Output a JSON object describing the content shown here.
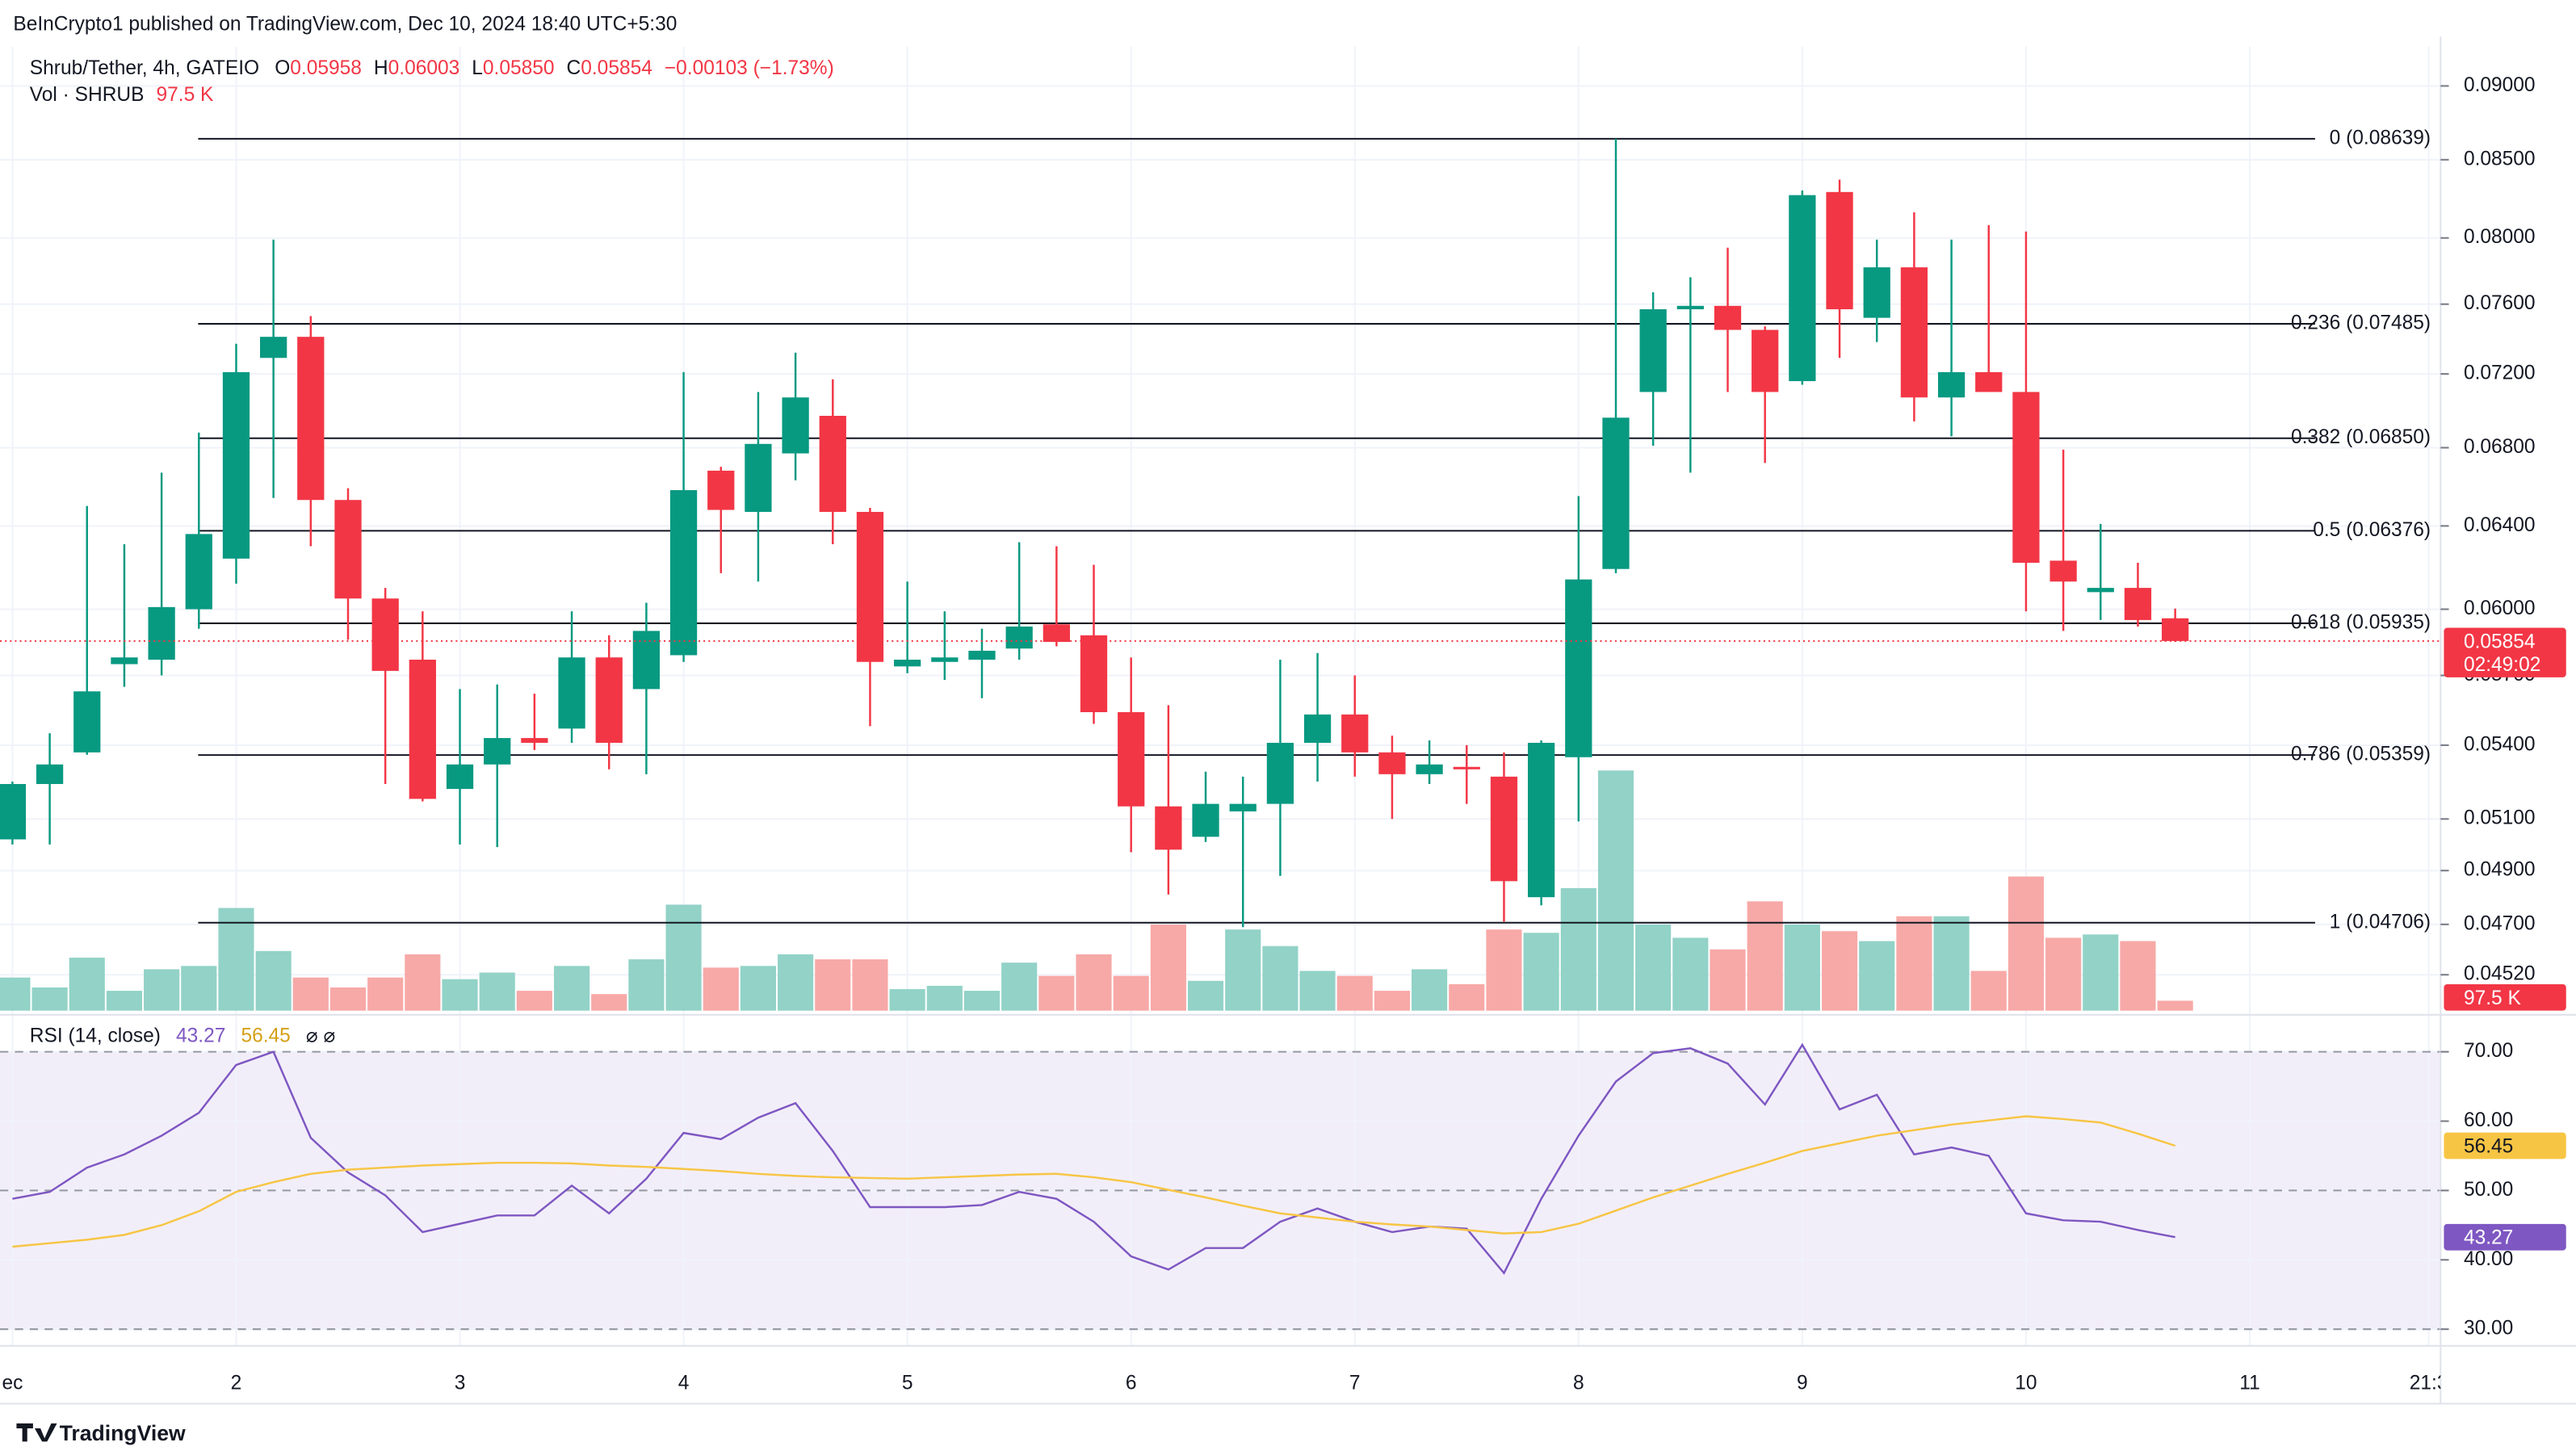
{
  "header": {
    "published": "BeInCrypto1 published on TradingView.com, Dec 10, 2024 18:40 UTC+5:30"
  },
  "footer": {
    "brand": "TradingView"
  },
  "chart_data": [
    {
      "type": "candlestick",
      "title": "Shrub/Tether, 4h, GATEIO",
      "legend": {
        "open": {
          "letter": "O",
          "text": "0.05958"
        },
        "high": {
          "letter": "H",
          "text": "0.06003"
        },
        "low": {
          "letter": "L",
          "text": "0.05850"
        },
        "close": {
          "letter": "C",
          "text": "0.05854"
        },
        "change": "−0.00103 (−1.73%)"
      },
      "countdown": "02:49:02",
      "up_color": "#089981",
      "down_color": "#f23645",
      "log_scale": true,
      "grid": true,
      "xlim": [
        0.9444,
        11.853
      ],
      "xticks": [
        {
          "value": 1,
          "label": "ec"
        },
        2,
        3,
        4,
        5,
        6,
        7,
        8,
        9,
        10,
        11,
        {
          "value": 11.8,
          "label": "21:3"
        }
      ],
      "ylim": [
        0.04396,
        0.0928
      ],
      "yticks": [
        {
          "value": 0.09,
          "label": "0.09000"
        },
        {
          "value": 0.085,
          "label": "0.08500"
        },
        {
          "value": 0.08,
          "label": "0.08000"
        },
        {
          "value": 0.076,
          "label": "0.07600"
        },
        {
          "value": 0.072,
          "label": "0.07200"
        },
        {
          "value": 0.068,
          "label": "0.06800"
        },
        {
          "value": 0.064,
          "label": "0.06400"
        },
        {
          "value": 0.06,
          "label": "0.06000"
        },
        {
          "value": 0.057,
          "label": "0.05700"
        },
        {
          "value": 0.054,
          "label": "0.05400"
        },
        {
          "value": 0.051,
          "label": "0.05100"
        },
        {
          "value": 0.049,
          "label": "0.04900"
        },
        {
          "value": 0.047,
          "label": "0.04700"
        },
        {
          "value": 0.0452,
          "label": "0.04520"
        }
      ],
      "fib_levels": [
        {
          "value": 0.08639,
          "label": "0 (0.08639)"
        },
        {
          "value": 0.07485,
          "label": "0.236 (0.07485)"
        },
        {
          "value": 0.0685,
          "label": "0.382 (0.06850)"
        },
        {
          "value": 0.06376,
          "label": "0.5 (0.06376)"
        },
        {
          "value": 0.05935,
          "label": "0.618 (0.05935)"
        },
        {
          "value": 0.05359,
          "label": "0.786 (0.05359)"
        },
        {
          "value": 0.04706,
          "label": "1 (0.04706)"
        }
      ],
      "x": [
        1,
        1.1667,
        1.3333,
        1.5,
        1.6667,
        1.8333,
        2,
        2.1667,
        2.3333,
        2.5,
        2.6667,
        2.8333,
        3,
        3.1667,
        3.3333,
        3.5,
        3.6667,
        3.8333,
        4,
        4.1667,
        4.3333,
        4.5,
        4.6667,
        4.8333,
        5,
        5.1667,
        5.3333,
        5.5,
        5.6667,
        5.8333,
        6,
        6.1667,
        6.3333,
        6.5,
        6.6667,
        6.8333,
        7,
        7.1667,
        7.3333,
        7.5,
        7.6667,
        7.8333,
        8,
        8.1667,
        8.3333,
        8.5,
        8.6667,
        8.8333,
        9,
        9.1667,
        9.3333,
        9.5,
        9.6667,
        9.8333,
        10,
        10.1667,
        10.3333,
        10.5,
        10.6667
      ],
      "open": [
        0.0502,
        0.0524,
        0.0537,
        0.0575,
        0.0577,
        0.06,
        0.0624,
        0.0729,
        0.0741,
        0.0653,
        0.0605,
        0.0577,
        0.0522,
        0.0532,
        0.0543,
        0.0547,
        0.0578,
        0.0564,
        0.0579,
        0.0668,
        0.0647,
        0.0677,
        0.0697,
        0.0647,
        0.0574,
        0.0576,
        0.0577,
        0.0582,
        0.0593,
        0.0588,
        0.0554,
        0.0515,
        0.0503,
        0.0513,
        0.0516,
        0.0541,
        0.0553,
        0.0537,
        0.0528,
        0.0531,
        0.0527,
        0.048,
        0.0535,
        0.0619,
        0.071,
        0.0757,
        0.0759,
        0.0745,
        0.0716,
        0.0829,
        0.0752,
        0.0782,
        0.0707,
        0.0721,
        0.071,
        0.0623,
        0.0608,
        0.061,
        0.05958
      ],
      "high": [
        0.0525,
        0.0545,
        0.065,
        0.0631,
        0.0667,
        0.0688,
        0.0737,
        0.0799,
        0.0753,
        0.0659,
        0.061,
        0.0599,
        0.0564,
        0.0566,
        0.0562,
        0.0599,
        0.0588,
        0.0603,
        0.0721,
        0.067,
        0.071,
        0.0732,
        0.0717,
        0.0649,
        0.0613,
        0.0599,
        0.0591,
        0.0632,
        0.063,
        0.0621,
        0.0578,
        0.0557,
        0.0529,
        0.0527,
        0.0577,
        0.058,
        0.057,
        0.0544,
        0.0542,
        0.054,
        0.0537,
        0.0542,
        0.0655,
        0.0864,
        0.0767,
        0.0776,
        0.0794,
        0.0747,
        0.083,
        0.0837,
        0.0799,
        0.0816,
        0.0799,
        0.0808,
        0.0804,
        0.0679,
        0.0641,
        0.0622,
        0.06003
      ],
      "low": [
        0.05,
        0.05,
        0.0536,
        0.0565,
        0.057,
        0.0591,
        0.0612,
        0.0654,
        0.063,
        0.0586,
        0.0524,
        0.0517,
        0.05,
        0.0499,
        0.0538,
        0.0541,
        0.053,
        0.0528,
        0.0576,
        0.0617,
        0.0613,
        0.0663,
        0.0631,
        0.0548,
        0.0571,
        0.0568,
        0.056,
        0.0577,
        0.0583,
        0.0549,
        0.0497,
        0.0481,
        0.0501,
        0.0469,
        0.0488,
        0.0525,
        0.0527,
        0.051,
        0.0524,
        0.0516,
        0.0471,
        0.0477,
        0.0509,
        0.0617,
        0.0681,
        0.0667,
        0.071,
        0.0672,
        0.0714,
        0.0729,
        0.0738,
        0.0694,
        0.0686,
        0.071,
        0.0599,
        0.059,
        0.0595,
        0.0592,
        0.0585
      ],
      "close": [
        0.0524,
        0.0532,
        0.0563,
        0.0578,
        0.0601,
        0.0636,
        0.0721,
        0.0741,
        0.0653,
        0.0605,
        0.0572,
        0.0518,
        0.0532,
        0.0543,
        0.0541,
        0.0578,
        0.0541,
        0.059,
        0.0658,
        0.0648,
        0.0682,
        0.0707,
        0.0647,
        0.0576,
        0.0577,
        0.0578,
        0.0581,
        0.0592,
        0.0585,
        0.0554,
        0.0515,
        0.0498,
        0.0516,
        0.0516,
        0.0541,
        0.0553,
        0.0537,
        0.0528,
        0.0532,
        0.053,
        0.0486,
        0.0541,
        0.0614,
        0.0696,
        0.0757,
        0.0759,
        0.0745,
        0.071,
        0.0827,
        0.0757,
        0.0782,
        0.0707,
        0.0721,
        0.071,
        0.0622,
        0.0613,
        0.061,
        0.0595,
        0.05854
      ]
    },
    {
      "type": "bar",
      "title": "Vol · SHRUB",
      "up_color": "#92d2c7",
      "down_color": "#f7a9a7",
      "ylim": [
        0,
        9460000
      ],
      "x": [
        1,
        1.1667,
        1.3333,
        1.5,
        1.6667,
        1.8333,
        2,
        2.1667,
        2.3333,
        2.5,
        2.6667,
        2.8333,
        3,
        3.1667,
        3.3333,
        3.5,
        3.6667,
        3.8333,
        4,
        4.1667,
        4.3333,
        4.5,
        4.6667,
        4.8333,
        5,
        5.1667,
        5.3333,
        5.5,
        5.6667,
        5.8333,
        6,
        6.1667,
        6.3333,
        6.5,
        6.6667,
        6.8333,
        7,
        7.1667,
        7.3333,
        7.5,
        7.6667,
        7.8333,
        8,
        8.1667,
        8.3333,
        8.5,
        8.6667,
        8.8333,
        9,
        9.1667,
        9.3333,
        9.5,
        9.6667,
        9.8333,
        10,
        10.1667,
        10.3333,
        10.5,
        10.6667
      ],
      "values": [
        325000,
        227500,
        520000,
        195000,
        406250,
        438750,
        1007500,
        585000,
        325000,
        227500,
        325000,
        552500,
        308750,
        373750,
        195000,
        438750,
        162500,
        503750,
        1040000,
        422500,
        438750,
        552500,
        503750,
        503750,
        211250,
        243750,
        195000,
        471250,
        341250,
        552500,
        341250,
        845000,
        292500,
        796250,
        633750,
        390000,
        341250,
        195000,
        406250,
        260000,
        796250,
        763750,
        1202500,
        2356250,
        845000,
        715000,
        601250,
        1072500,
        845000,
        780000,
        682500,
        926250,
        926250,
        390000,
        1316250,
        715000,
        747500,
        682500,
        97500
      ],
      "value_labels": [
        null,
        null,
        null,
        null,
        null,
        null,
        null,
        null,
        null,
        null,
        null,
        null,
        null,
        null,
        null,
        null,
        null,
        null,
        null,
        null,
        null,
        null,
        null,
        null,
        null,
        null,
        null,
        null,
        null,
        null,
        null,
        null,
        null,
        null,
        null,
        null,
        null,
        null,
        null,
        null,
        null,
        null,
        null,
        null,
        null,
        null,
        null,
        null,
        null,
        null,
        null,
        null,
        null,
        null,
        null,
        null,
        null,
        null,
        "97.5 K"
      ]
    },
    {
      "type": "line",
      "title": "RSI (14, close)",
      "legend_extra": "⌀ ⌀",
      "band_color": "#7e57c2",
      "ylim": [
        27.6,
        74.5
      ],
      "yticks": [
        {
          "value": 70,
          "label": "70.00"
        },
        {
          "value": 60,
          "label": "60.00"
        },
        {
          "value": 50,
          "label": "50.00"
        },
        {
          "value": 40,
          "label": "40.00"
        },
        {
          "value": 30,
          "label": "30.00"
        }
      ],
      "bands": {
        "upper": 70,
        "middle": 50,
        "lower": 30
      },
      "x": [
        1,
        1.1667,
        1.3333,
        1.5,
        1.6667,
        1.8333,
        2,
        2.1667,
        2.3333,
        2.5,
        2.6667,
        2.8333,
        3,
        3.1667,
        3.3333,
        3.5,
        3.6667,
        3.8333,
        4,
        4.1667,
        4.3333,
        4.5,
        4.6667,
        4.8333,
        5,
        5.1667,
        5.3333,
        5.5,
        5.6667,
        5.8333,
        6,
        6.1667,
        6.3333,
        6.5,
        6.6667,
        6.8333,
        7,
        7.1667,
        7.3333,
        7.5,
        7.6667,
        7.8333,
        8,
        8.1667,
        8.3333,
        8.5,
        8.6667,
        8.8333,
        9,
        9.1667,
        9.3333,
        9.5,
        9.6667,
        9.8333,
        10,
        10.1667,
        10.3333,
        10.5,
        10.6667
      ],
      "series": [
        {
          "color": "#7e57c2",
          "values": [
            48.8,
            49.8,
            53.3,
            55.2,
            57.9,
            61.2,
            68.1,
            70.0,
            57.6,
            52.6,
            49.3,
            44.0,
            45.2,
            46.4,
            46.4,
            50.7,
            46.7,
            51.7,
            58.3,
            57.4,
            60.5,
            62.6,
            55.7,
            47.6,
            47.6,
            47.6,
            47.9,
            49.8,
            48.8,
            45.5,
            40.5,
            38.6,
            41.7,
            41.7,
            45.5,
            47.4,
            45.5,
            44.0,
            44.8,
            44.5,
            38.1,
            48.8,
            57.9,
            65.7,
            69.8,
            70.5,
            68.3,
            62.4,
            71.0,
            61.7,
            63.8,
            55.2,
            56.2,
            55.0,
            46.7,
            45.7,
            45.5,
            44.3,
            43.27
          ]
        },
        {
          "color": "#f7c544",
          "values": [
            41.9,
            42.4,
            42.9,
            43.6,
            45.0,
            47.0,
            49.8,
            51.2,
            52.4,
            53.0,
            53.3,
            53.6,
            53.8,
            54.0,
            54.0,
            53.9,
            53.6,
            53.4,
            53.1,
            52.8,
            52.4,
            52.1,
            51.9,
            51.8,
            51.7,
            51.9,
            52.1,
            52.3,
            52.4,
            51.9,
            51.2,
            50.1,
            49.0,
            47.8,
            46.7,
            46.1,
            45.5,
            45.1,
            44.8,
            44.3,
            43.8,
            44.0,
            45.2,
            47.1,
            49.0,
            50.7,
            52.4,
            54.0,
            55.7,
            56.8,
            57.9,
            58.7,
            59.5,
            60.1,
            60.7,
            60.3,
            59.8,
            58.2,
            56.45
          ]
        }
      ]
    }
  ]
}
